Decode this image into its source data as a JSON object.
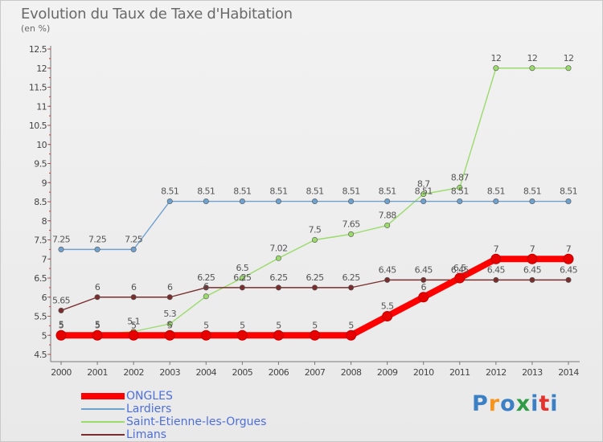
{
  "chart_data": {
    "type": "line",
    "title": "Evolution du Taux de Taxe d'Habitation",
    "subtitle": "(en %)",
    "categories": [
      "2000",
      "2001",
      "2002",
      "2003",
      "2004",
      "2005",
      "2006",
      "2007",
      "2008",
      "2009",
      "2010",
      "2011",
      "2012",
      "2013",
      "2014"
    ],
    "ylim": [
      4.5,
      12.5
    ],
    "yticks": [
      "4.5",
      "5",
      "5.5",
      "6",
      "6.5",
      "7",
      "7.5",
      "8",
      "8.5",
      "9",
      "9.5",
      "10",
      "10.5",
      "11",
      "11.5",
      "12",
      "12.5"
    ],
    "grid": false,
    "series": [
      {
        "name": "ONGLES",
        "color": "#ff0000",
        "values": [
          5,
          5,
          5,
          5,
          5,
          5,
          5,
          5,
          5,
          5.5,
          6,
          6.5,
          7,
          7,
          7
        ]
      },
      {
        "name": "Lardiers",
        "color": "#6fa1cf",
        "values": [
          7.25,
          7.25,
          7.25,
          8.51,
          8.51,
          8.51,
          8.51,
          8.51,
          8.51,
          8.51,
          8.51,
          8.51,
          8.51,
          8.51,
          8.51
        ]
      },
      {
        "name": "Saint-Etienne-les-Orgues",
        "color": "#9adb6b",
        "values": [
          5.02,
          5.02,
          5.1,
          5.3,
          6.02,
          6.5,
          7.02,
          7.5,
          7.65,
          7.88,
          8.7,
          8.87,
          12,
          12,
          12
        ]
      },
      {
        "name": "Limans",
        "color": "#7a2d2d",
        "values": [
          5.65,
          6,
          6,
          6,
          6.25,
          6.25,
          6.25,
          6.25,
          6.25,
          6.45,
          6.45,
          6.45,
          6.45,
          6.45,
          6.45
        ]
      }
    ],
    "point_labels": [
      [
        "5",
        "5",
        "5",
        "5",
        "5",
        "5",
        "5",
        "5",
        "5",
        "5.5",
        "6",
        "6.5",
        "7",
        "7",
        "7"
      ],
      [
        "7.25",
        "7.25",
        "7.25",
        "8.51",
        "8.51",
        "8.51",
        "8.51",
        "8.51",
        "8.51",
        "8.51",
        "8.51",
        "8.51",
        "8.51",
        "8.51",
        "8.51"
      ],
      [
        "5",
        "5",
        "5.1",
        "5.3",
        "6",
        "6.5",
        "7.02",
        "7.5",
        "7.65",
        "7.88",
        "8.7",
        "8.87",
        "12",
        "12",
        "12"
      ],
      [
        "5.65",
        "6",
        "6",
        "6",
        "6.25",
        "6.25",
        "6.25",
        "6.25",
        "6.25",
        "6.45",
        "6.45",
        "6.45",
        "6.45",
        "6.45",
        "6.45"
      ]
    ]
  },
  "logo": {
    "text": "Proxiti",
    "colors": [
      "#3b7fc4",
      "#f7941d",
      "#3b7fc4",
      "#2e9c46",
      "#3b7fc4",
      "#e5322d"
    ]
  }
}
